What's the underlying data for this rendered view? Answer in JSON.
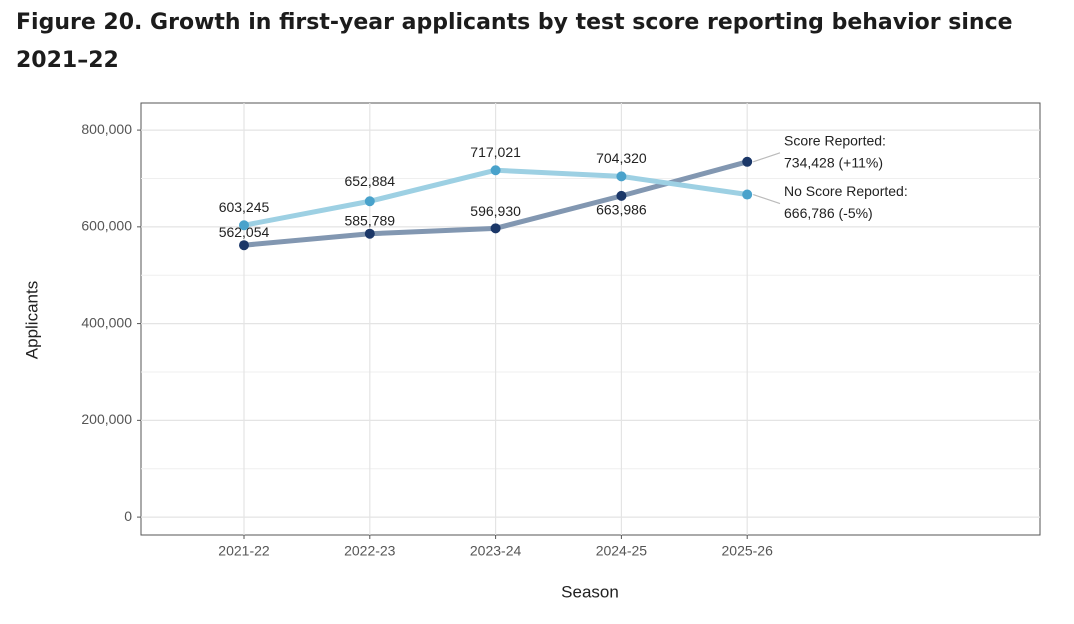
{
  "chart_data": {
    "type": "line",
    "title": "Figure 20. Growth in first-year applicants by test score reporting behavior since 2021–22",
    "x_label": "Season",
    "y_label": "Applicants",
    "categories": [
      "2021-22",
      "2022-23",
      "2023-24",
      "2024-25",
      "2025-26"
    ],
    "series": [
      {
        "name": "Score Reported:",
        "line_color": "#8297b1",
        "color": "#1b3768",
        "values": [
          562054,
          585789,
          596930,
          663986,
          734428
        ],
        "value_labels": [
          "562,054",
          "585,789",
          "596,930",
          "663,986",
          "734,428 (+11%)"
        ]
      },
      {
        "name": "No Score Reported:",
        "line_color": "#9dd0e3",
        "color": "#49a2cb",
        "values": [
          603245,
          652884,
          717021,
          704320,
          666786
        ],
        "value_labels": [
          "603,245",
          "652,884",
          "717,021",
          "704,320",
          "666,786 (-5%)"
        ]
      }
    ],
    "ylim": [
      -37000,
      856000
    ],
    "yticks": [
      0,
      {
        "value": 200000,
        "label": "200,000"
      },
      {
        "value": 400000,
        "label": "400,000"
      },
      {
        "value": 600000,
        "label": "600,000"
      },
      {
        "value": 800000,
        "label": "800,000"
      }
    ],
    "grid": true
  }
}
